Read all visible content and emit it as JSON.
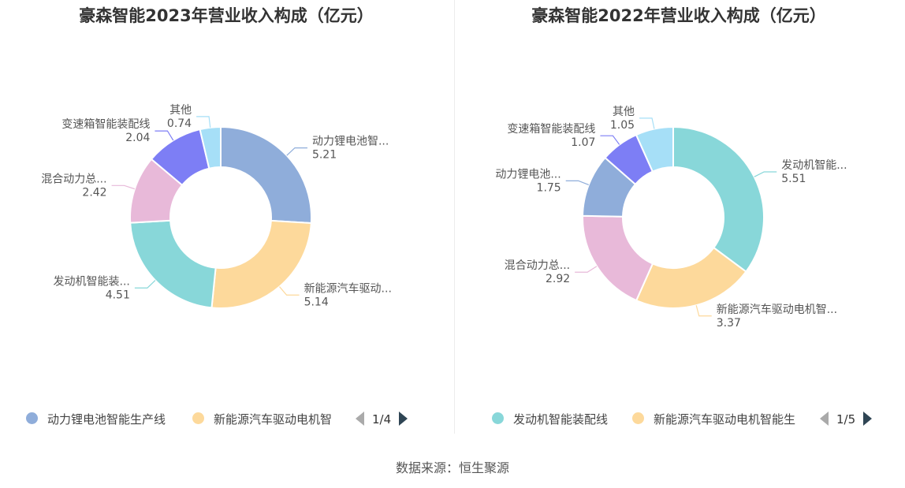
{
  "source_label": "数据来源：恒生聚源",
  "chart_data": [
    {
      "type": "pie",
      "title": "豪森智能2023年营业收入构成（亿元）",
      "slices": [
        {
          "name": "动力锂电池智能生产线",
          "label": "动力锂电池智...",
          "value": 5.21,
          "color": "#8fadda"
        },
        {
          "name": "新能源汽车驱动电机智能生产线",
          "label": "新能源汽车驱动...",
          "value": 5.14,
          "color": "#fdd99b"
        },
        {
          "name": "发动机智能装配线",
          "label": "发动机智能装...",
          "value": 4.51,
          "color": "#88d7d9"
        },
        {
          "name": "混合动力总成智能装配线",
          "label": "混合动力总...",
          "value": 2.42,
          "color": "#e8b9d9"
        },
        {
          "name": "变速箱智能装配线",
          "label": "变速箱智能装配线",
          "value": 2.04,
          "color": "#7d7ef5"
        },
        {
          "name": "其他",
          "label": "其他",
          "value": 0.74,
          "color": "#a6dff7"
        }
      ],
      "legend": {
        "items": [
          {
            "label": "动力锂电池智能生产线",
            "color": "#8fadda"
          },
          {
            "label": "新能源汽车驱动电机智",
            "color": "#fdd99b"
          }
        ],
        "page": "1/4"
      }
    },
    {
      "type": "pie",
      "title": "豪森智能2022年营业收入构成（亿元）",
      "slices": [
        {
          "name": "发动机智能装配线",
          "label": "发动机智能...",
          "value": 5.51,
          "color": "#88d7d9"
        },
        {
          "name": "新能源汽车驱动电机智能生产线",
          "label": "新能源汽车驱动电机智...",
          "value": 3.37,
          "color": "#fdd99b"
        },
        {
          "name": "混合动力总成智能装配线",
          "label": "混合动力总...",
          "value": 2.92,
          "color": "#e8b9d9"
        },
        {
          "name": "动力锂电池智能生产线",
          "label": "动力锂电池...",
          "value": 1.75,
          "color": "#8fadda"
        },
        {
          "name": "变速箱智能装配线",
          "label": "变速箱智能装配线",
          "value": 1.07,
          "color": "#7d7ef5"
        },
        {
          "name": "其他",
          "label": "其他",
          "value": 1.05,
          "color": "#a6dff7"
        }
      ],
      "legend": {
        "items": [
          {
            "label": "发动机智能装配线",
            "color": "#88d7d9"
          },
          {
            "label": "新能源汽车驱动电机智能生",
            "color": "#fdd99b"
          }
        ],
        "page": "1/5"
      }
    }
  ]
}
